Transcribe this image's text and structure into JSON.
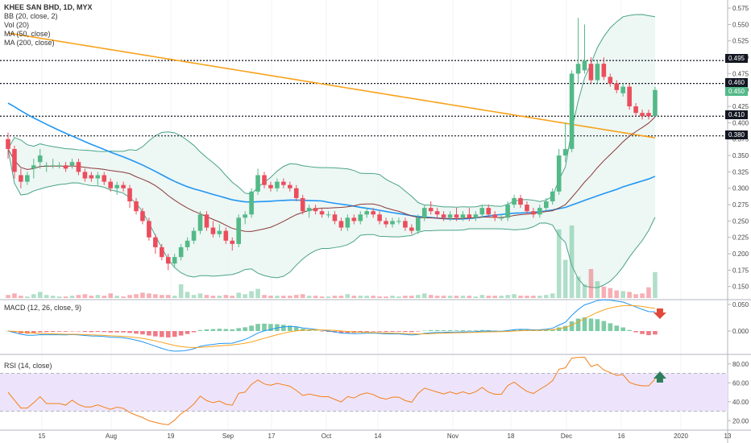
{
  "legend_main": {
    "title": "KHEE SAN BHD, 1D, MYX",
    "bb": "BB (20, close, 2)",
    "vol": "Vol (20)",
    "ma50": "MA (50, close)",
    "ma200": "MA (200, close)"
  },
  "legend_macd": "MACD (12, 26, close, 9)",
  "legend_rsi": "RSI (14, close)",
  "colors": {
    "up": "#53b987",
    "down": "#eb4d5c",
    "ma200": "#f7a21b",
    "ma50": "#2196f3",
    "bb_mid": "#8b3a3a",
    "bb_band": "#4aa38a",
    "bb_fill": "#e8f5f1",
    "rsi": "#f57f17",
    "rsi_band": "#ede4fb"
  },
  "chart_data": [
    {
      "type": "candlestick",
      "title": "KHEE SAN BHD, 1D, MYX",
      "ylim": [
        0.13,
        0.58
      ],
      "y_ticks": [
        "0.575",
        "0.550",
        "0.525",
        "0.500",
        "0.475",
        "0.450",
        "0.425",
        "0.400",
        "0.375",
        "0.350",
        "0.325",
        "0.300",
        "0.275",
        "0.250",
        "0.225",
        "0.200",
        "0.175",
        "0.150"
      ],
      "x_ticks": [
        "15",
        "Aug",
        "19",
        "Sep",
        "17",
        "Oct",
        "14",
        "Nov",
        "18",
        "Dec",
        "16",
        "2020",
        "13"
      ],
      "horizontal_lines": [
        0.495,
        0.46,
        0.41,
        0.38
      ],
      "price_labels": [
        {
          "value": "0.495",
          "style": "dark"
        },
        {
          "value": "0.460",
          "style": "dark"
        },
        {
          "value": "0.450",
          "style": "green"
        },
        {
          "value": "0.410",
          "style": "dark"
        },
        {
          "value": "0.380",
          "style": "dark"
        }
      ],
      "candles": [
        {
          "o": 0.375,
          "h": 0.385,
          "l": 0.345,
          "c": 0.36
        },
        {
          "o": 0.36,
          "h": 0.365,
          "l": 0.315,
          "c": 0.325
        },
        {
          "o": 0.32,
          "h": 0.33,
          "l": 0.3,
          "c": 0.31
        },
        {
          "o": 0.31,
          "h": 0.325,
          "l": 0.305,
          "c": 0.32
        },
        {
          "o": 0.33,
          "h": 0.345,
          "l": 0.315,
          "c": 0.335
        },
        {
          "o": 0.34,
          "h": 0.36,
          "l": 0.33,
          "c": 0.35
        },
        {
          "o": 0.335,
          "h": 0.34,
          "l": 0.325,
          "c": 0.335
        },
        {
          "o": 0.335,
          "h": 0.345,
          "l": 0.33,
          "c": 0.335
        },
        {
          "o": 0.335,
          "h": 0.34,
          "l": 0.33,
          "c": 0.335
        },
        {
          "o": 0.335,
          "h": 0.34,
          "l": 0.325,
          "c": 0.33
        },
        {
          "o": 0.335,
          "h": 0.345,
          "l": 0.33,
          "c": 0.34
        },
        {
          "o": 0.34,
          "h": 0.345,
          "l": 0.32,
          "c": 0.325
        },
        {
          "o": 0.325,
          "h": 0.33,
          "l": 0.31,
          "c": 0.315
        },
        {
          "o": 0.32,
          "h": 0.325,
          "l": 0.31,
          "c": 0.315
        },
        {
          "o": 0.315,
          "h": 0.325,
          "l": 0.305,
          "c": 0.32
        },
        {
          "o": 0.32,
          "h": 0.325,
          "l": 0.305,
          "c": 0.31
        },
        {
          "o": 0.31,
          "h": 0.315,
          "l": 0.295,
          "c": 0.3
        },
        {
          "o": 0.3,
          "h": 0.31,
          "l": 0.29,
          "c": 0.305
        },
        {
          "o": 0.305,
          "h": 0.31,
          "l": 0.295,
          "c": 0.3
        },
        {
          "o": 0.3,
          "h": 0.305,
          "l": 0.27,
          "c": 0.28
        },
        {
          "o": 0.28,
          "h": 0.285,
          "l": 0.26,
          "c": 0.265
        },
        {
          "o": 0.265,
          "h": 0.27,
          "l": 0.245,
          "c": 0.25
        },
        {
          "o": 0.25,
          "h": 0.255,
          "l": 0.22,
          "c": 0.225
        },
        {
          "o": 0.225,
          "h": 0.23,
          "l": 0.2,
          "c": 0.21
        },
        {
          "o": 0.21,
          "h": 0.215,
          "l": 0.19,
          "c": 0.195
        },
        {
          "o": 0.195,
          "h": 0.2,
          "l": 0.175,
          "c": 0.185
        },
        {
          "o": 0.185,
          "h": 0.2,
          "l": 0.18,
          "c": 0.195
        },
        {
          "o": 0.195,
          "h": 0.215,
          "l": 0.19,
          "c": 0.21
        },
        {
          "o": 0.21,
          "h": 0.225,
          "l": 0.205,
          "c": 0.22
        },
        {
          "o": 0.22,
          "h": 0.24,
          "l": 0.215,
          "c": 0.235
        },
        {
          "o": 0.235,
          "h": 0.265,
          "l": 0.23,
          "c": 0.26
        },
        {
          "o": 0.26,
          "h": 0.265,
          "l": 0.235,
          "c": 0.24
        },
        {
          "o": 0.24,
          "h": 0.25,
          "l": 0.225,
          "c": 0.23
        },
        {
          "o": 0.23,
          "h": 0.245,
          "l": 0.225,
          "c": 0.235
        },
        {
          "o": 0.235,
          "h": 0.24,
          "l": 0.215,
          "c": 0.22
        },
        {
          "o": 0.22,
          "h": 0.225,
          "l": 0.205,
          "c": 0.215
        },
        {
          "o": 0.215,
          "h": 0.26,
          "l": 0.21,
          "c": 0.255
        },
        {
          "o": 0.255,
          "h": 0.265,
          "l": 0.245,
          "c": 0.26
        },
        {
          "o": 0.26,
          "h": 0.3,
          "l": 0.255,
          "c": 0.295
        },
        {
          "o": 0.295,
          "h": 0.33,
          "l": 0.29,
          "c": 0.32
        },
        {
          "o": 0.32,
          "h": 0.325,
          "l": 0.3,
          "c": 0.305
        },
        {
          "o": 0.305,
          "h": 0.31,
          "l": 0.295,
          "c": 0.3
        },
        {
          "o": 0.3,
          "h": 0.315,
          "l": 0.295,
          "c": 0.31
        },
        {
          "o": 0.31,
          "h": 0.315,
          "l": 0.3,
          "c": 0.305
        },
        {
          "o": 0.305,
          "h": 0.31,
          "l": 0.295,
          "c": 0.3
        },
        {
          "o": 0.3,
          "h": 0.305,
          "l": 0.28,
          "c": 0.285
        },
        {
          "o": 0.285,
          "h": 0.29,
          "l": 0.26,
          "c": 0.265
        },
        {
          "o": 0.265,
          "h": 0.275,
          "l": 0.255,
          "c": 0.27
        },
        {
          "o": 0.27,
          "h": 0.275,
          "l": 0.26,
          "c": 0.265
        },
        {
          "o": 0.265,
          "h": 0.27,
          "l": 0.255,
          "c": 0.26
        },
        {
          "o": 0.26,
          "h": 0.265,
          "l": 0.255,
          "c": 0.26
        },
        {
          "o": 0.26,
          "h": 0.265,
          "l": 0.245,
          "c": 0.25
        },
        {
          "o": 0.25,
          "h": 0.255,
          "l": 0.235,
          "c": 0.24
        },
        {
          "o": 0.24,
          "h": 0.26,
          "l": 0.235,
          "c": 0.255
        },
        {
          "o": 0.255,
          "h": 0.26,
          "l": 0.245,
          "c": 0.25
        },
        {
          "o": 0.25,
          "h": 0.265,
          "l": 0.245,
          "c": 0.26
        },
        {
          "o": 0.26,
          "h": 0.27,
          "l": 0.255,
          "c": 0.265
        },
        {
          "o": 0.265,
          "h": 0.27,
          "l": 0.255,
          "c": 0.26
        },
        {
          "o": 0.26,
          "h": 0.265,
          "l": 0.245,
          "c": 0.25
        },
        {
          "o": 0.25,
          "h": 0.255,
          "l": 0.24,
          "c": 0.245
        },
        {
          "o": 0.245,
          "h": 0.255,
          "l": 0.24,
          "c": 0.25
        },
        {
          "o": 0.25,
          "h": 0.255,
          "l": 0.245,
          "c": 0.25
        },
        {
          "o": 0.25,
          "h": 0.255,
          "l": 0.235,
          "c": 0.24
        },
        {
          "o": 0.24,
          "h": 0.245,
          "l": 0.23,
          "c": 0.235
        },
        {
          "o": 0.235,
          "h": 0.26,
          "l": 0.23,
          "c": 0.255
        },
        {
          "o": 0.255,
          "h": 0.275,
          "l": 0.25,
          "c": 0.27
        },
        {
          "o": 0.27,
          "h": 0.28,
          "l": 0.26,
          "c": 0.265
        },
        {
          "o": 0.265,
          "h": 0.27,
          "l": 0.255,
          "c": 0.26
        },
        {
          "o": 0.26,
          "h": 0.265,
          "l": 0.25,
          "c": 0.255
        },
        {
          "o": 0.255,
          "h": 0.265,
          "l": 0.25,
          "c": 0.26
        },
        {
          "o": 0.26,
          "h": 0.27,
          "l": 0.25,
          "c": 0.255
        },
        {
          "o": 0.255,
          "h": 0.265,
          "l": 0.25,
          "c": 0.26
        },
        {
          "o": 0.26,
          "h": 0.27,
          "l": 0.25,
          "c": 0.255
        },
        {
          "o": 0.255,
          "h": 0.265,
          "l": 0.25,
          "c": 0.26
        },
        {
          "o": 0.26,
          "h": 0.275,
          "l": 0.255,
          "c": 0.27
        },
        {
          "o": 0.27,
          "h": 0.275,
          "l": 0.255,
          "c": 0.26
        },
        {
          "o": 0.26,
          "h": 0.265,
          "l": 0.25,
          "c": 0.255
        },
        {
          "o": 0.255,
          "h": 0.26,
          "l": 0.25,
          "c": 0.255
        },
        {
          "o": 0.255,
          "h": 0.28,
          "l": 0.25,
          "c": 0.275
        },
        {
          "o": 0.275,
          "h": 0.29,
          "l": 0.27,
          "c": 0.285
        },
        {
          "o": 0.285,
          "h": 0.29,
          "l": 0.27,
          "c": 0.275
        },
        {
          "o": 0.275,
          "h": 0.28,
          "l": 0.26,
          "c": 0.265
        },
        {
          "o": 0.265,
          "h": 0.27,
          "l": 0.255,
          "c": 0.26
        },
        {
          "o": 0.26,
          "h": 0.275,
          "l": 0.255,
          "c": 0.27
        },
        {
          "o": 0.27,
          "h": 0.285,
          "l": 0.265,
          "c": 0.28
        },
        {
          "o": 0.28,
          "h": 0.3,
          "l": 0.275,
          "c": 0.295
        },
        {
          "o": 0.295,
          "h": 0.36,
          "l": 0.29,
          "c": 0.35
        },
        {
          "o": 0.35,
          "h": 0.4,
          "l": 0.34,
          "c": 0.36
        },
        {
          "o": 0.36,
          "h": 0.48,
          "l": 0.355,
          "c": 0.475
        },
        {
          "o": 0.475,
          "h": 0.56,
          "l": 0.46,
          "c": 0.49
        },
        {
          "o": 0.48,
          "h": 0.55,
          "l": 0.475,
          "c": 0.495
        },
        {
          "o": 0.49,
          "h": 0.5,
          "l": 0.46,
          "c": 0.465
        },
        {
          "o": 0.465,
          "h": 0.495,
          "l": 0.46,
          "c": 0.49
        },
        {
          "o": 0.49,
          "h": 0.5,
          "l": 0.465,
          "c": 0.47
        },
        {
          "o": 0.47,
          "h": 0.475,
          "l": 0.455,
          "c": 0.46
        },
        {
          "o": 0.46,
          "h": 0.465,
          "l": 0.445,
          "c": 0.45
        },
        {
          "o": 0.445,
          "h": 0.46,
          "l": 0.44,
          "c": 0.455
        },
        {
          "o": 0.455,
          "h": 0.46,
          "l": 0.42,
          "c": 0.425
        },
        {
          "o": 0.425,
          "h": 0.43,
          "l": 0.41,
          "c": 0.415
        },
        {
          "o": 0.415,
          "h": 0.42,
          "l": 0.405,
          "c": 0.41
        },
        {
          "o": 0.415,
          "h": 0.42,
          "l": 0.405,
          "c": 0.41
        },
        {
          "o": 0.41,
          "h": 0.455,
          "l": 0.41,
          "c": 0.45
        }
      ],
      "volume": [
        4,
        6,
        3,
        2,
        5,
        8,
        4,
        3,
        2,
        2,
        3,
        4,
        5,
        3,
        4,
        3,
        6,
        3,
        2,
        4,
        5,
        7,
        6,
        5,
        4,
        4,
        3,
        18,
        8,
        4,
        6,
        4,
        3,
        3,
        4,
        3,
        7,
        5,
        9,
        12,
        4,
        3,
        3,
        3,
        3,
        4,
        5,
        3,
        3,
        2,
        2,
        3,
        3,
        5,
        3,
        3,
        3,
        3,
        2,
        2,
        3,
        2,
        3,
        3,
        4,
        6,
        4,
        3,
        3,
        3,
        3,
        3,
        3,
        2,
        4,
        3,
        3,
        3,
        4,
        5,
        3,
        3,
        3,
        3,
        4,
        6,
        90,
        50,
        95,
        28,
        18,
        38,
        22,
        15,
        13,
        10,
        9,
        8,
        5,
        6,
        14,
        34
      ]
    },
    {
      "type": "line",
      "title": "MACD (12, 26, close, 9)",
      "y_ticks": [
        "0.050",
        "0.000"
      ]
    },
    {
      "type": "line",
      "title": "RSI (14, close)",
      "ylim": [
        10,
        90
      ],
      "y_ticks": [
        "80.00",
        "60.00",
        "40.00",
        "20.00"
      ],
      "band": [
        30,
        70
      ]
    }
  ]
}
